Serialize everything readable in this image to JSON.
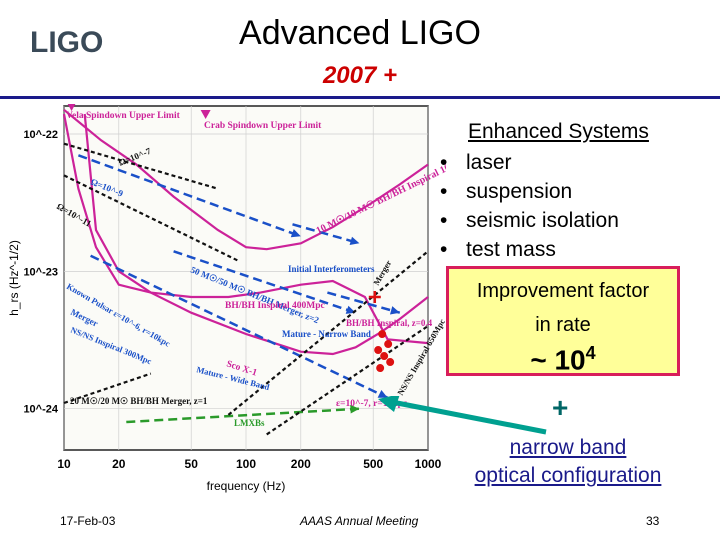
{
  "logo": {
    "text": "LIGO"
  },
  "slide": {
    "title": "Advanced LIGO",
    "subtitle": "2007 +"
  },
  "systems": {
    "heading": "Enhanced Systems",
    "items": [
      "laser",
      "suspension",
      "seismic isolation",
      "test mass"
    ]
  },
  "improvement": {
    "line1": "Improvement factor",
    "line2": "in rate",
    "value_prefix": "~ 10",
    "value_exp": "4"
  },
  "plus": "+",
  "narrow_band": {
    "line1": "narrow band",
    "line2": "optical configuration"
  },
  "footer": {
    "date": "17-Feb-03",
    "meeting": "AAAS Annual Meeting",
    "page": "33"
  },
  "chart_data": {
    "type": "line",
    "xlabel": "frequency (Hz)",
    "ylabel": "h_rs (Hz^-1/2)",
    "xscale": "log",
    "yscale": "log",
    "xlim": [
      10,
      1000
    ],
    "ylim": [
      5e-25,
      1.6e-22
    ],
    "x_ticks": [
      "10",
      "20",
      "50",
      "100",
      "200",
      "500",
      "1000"
    ],
    "y_ticks": [
      {
        "value": 1e-22,
        "label": "10^-22"
      },
      {
        "value": 1e-23,
        "label": "10^-23"
      },
      {
        "value": 1e-24,
        "label": "10^-24"
      }
    ],
    "curves": [
      {
        "name": "Initial Interferometers",
        "color": "#cc2299",
        "x": [
          10,
          16,
          25,
          40,
          70,
          100,
          130,
          200,
          300,
          500,
          700,
          1000
        ],
        "y": [
          1.5e-22,
          9e-23,
          6e-23,
          3.5e-23,
          2e-23,
          1.5e-23,
          1.45e-23,
          1.6e-23,
          2.1e-23,
          3.2e-23,
          4.3e-23,
          6e-23
        ]
      },
      {
        "name": "Mature - Narrow Band",
        "color": "#cc2299",
        "x": [
          10,
          12,
          15,
          20,
          30,
          50,
          80,
          120,
          200,
          300,
          450,
          600,
          1000
        ],
        "y": [
          1.4e-22,
          4e-23,
          1.5e-23,
          8e-24,
          7e-24,
          6.5e-24,
          6.5e-24,
          7e-24,
          8e-24,
          8.5e-24,
          6.5e-24,
          3.2e-24,
          3e-24
        ]
      },
      {
        "name": "Mature - Wide Band",
        "color": "#cc2299",
        "x": [
          13,
          15,
          20,
          30,
          50,
          100,
          200,
          300,
          400,
          550,
          700,
          1000
        ],
        "y": [
          1.4e-22,
          2e-23,
          1e-23,
          7e-24,
          5e-24,
          3.5e-24,
          2.6e-24,
          2.5e-24,
          2.8e-24,
          3.6e-24,
          4.5e-24,
          6.5e-24
        ]
      },
      {
        "name": "Ω=10^-7",
        "color": "#111111",
        "x": [
          10,
          70
        ],
        "y": [
          8.5e-23,
          4e-23
        ]
      },
      {
        "name": "Ω=10^-9",
        "color": "#111111",
        "x": [
          10,
          90
        ],
        "y": [
          5e-23,
          1.2e-23
        ]
      },
      {
        "name": "Ω=10^-11",
        "color": "#111111",
        "x": [
          10,
          30
        ],
        "y": [
          1.1e-24,
          1.8e-24
        ]
      },
      {
        "name": "10 M☉/10 M☉ BH/BH Inspiral 100Mpc",
        "color": "#1a50c8",
        "x": [
          12,
          200
        ],
        "y": [
          7e-23,
          1.8e-23
        ]
      },
      {
        "name": "BH/BH Merger",
        "color": "#1a50c8",
        "x": [
          180,
          420
        ],
        "y": [
          2.2e-23,
          1.6e-23
        ]
      },
      {
        "name": "BH/BH Inspiral 400Mpc",
        "color": "#1a50c8",
        "x": [
          40,
          400
        ],
        "y": [
          1.4e-23,
          5e-24
        ]
      },
      {
        "name": "Merger",
        "color": "#1a50c8",
        "x": [
          280,
          700
        ],
        "y": [
          7e-24,
          5e-24
        ]
      },
      {
        "name": "NS/NS Inspiral 300Mpc / NS/NS Inspiral 650Mpc",
        "color": "#1a50c8",
        "x": [
          14,
          600
        ],
        "y": [
          1.3e-23,
          1.2e-24
        ]
      },
      {
        "name": "20 M☉/20 M☉ BH/BH Merger, z=1",
        "color": "#2a9a2a",
        "x": [
          22,
          420
        ],
        "y": [
          8e-25,
          1e-24
        ]
      },
      {
        "name": "Known Pulsar ε=10^-6, r=10kpc",
        "color": "#111111",
        "x": [
          80,
          1000
        ],
        "y": [
          9e-25,
          1.4e-23
        ]
      },
      {
        "name": "ε=10^-7, r=10kpc",
        "color": "#111111",
        "x": [
          130,
          1000
        ],
        "y": [
          6.5e-25,
          4e-24
        ]
      }
    ],
    "annotations": [
      {
        "text": "Vela Spindown Upper Limit",
        "color": "#cc2299"
      },
      {
        "text": "Crab Spindown Upper Limit",
        "color": "#cc2299"
      },
      {
        "text": "Ω=10^-7"
      },
      {
        "text": "Ω=10^-9"
      },
      {
        "text": "Ω=10^-11"
      },
      {
        "text": "10 M☉/10 M☉ BH/BH Inspiral 100Mpc"
      },
      {
        "text": "Initial Interferometers"
      },
      {
        "text": "Merger"
      },
      {
        "text": "Known Pulsar ε=10^-6, r=10kpc"
      },
      {
        "text": "50 M☉/50 M☉ BH/BH Merger, z=2"
      },
      {
        "text": "BH/BH Inspiral 400Mpc"
      },
      {
        "text": "Mature - Narrow Band"
      },
      {
        "text": "Merger"
      },
      {
        "text": "NS/NS Inspiral 300Mpc"
      },
      {
        "text": "BH/BH Inspiral, z=0.4"
      },
      {
        "text": "Sco X-1"
      },
      {
        "text": "Mature - Wide Band"
      },
      {
        "text": "NS/NS Inspiral 650Mpc"
      },
      {
        "text": "ε=10^-7, r=10kpc"
      },
      {
        "text": "LMXBs"
      },
      {
        "text": "20 M☉/20 M☉ BH/BH Merger, z=1"
      }
    ],
    "markers": [
      {
        "name": "Vela Spindown Upper Limit",
        "x": 11,
        "y": 1.6e-22,
        "color": "#cc2299"
      },
      {
        "name": "Crab Spindown Upper Limit",
        "x": 60,
        "y": 1.4e-22,
        "color": "#cc2299"
      },
      {
        "name": "Sco X-1",
        "x": 510,
        "y": 6.5e-24,
        "color": "#dd1111"
      },
      {
        "name": "LMXBs",
        "x": 560,
        "y": 2.5e-24,
        "color": "#dd1111"
      }
    ],
    "grid": true
  }
}
